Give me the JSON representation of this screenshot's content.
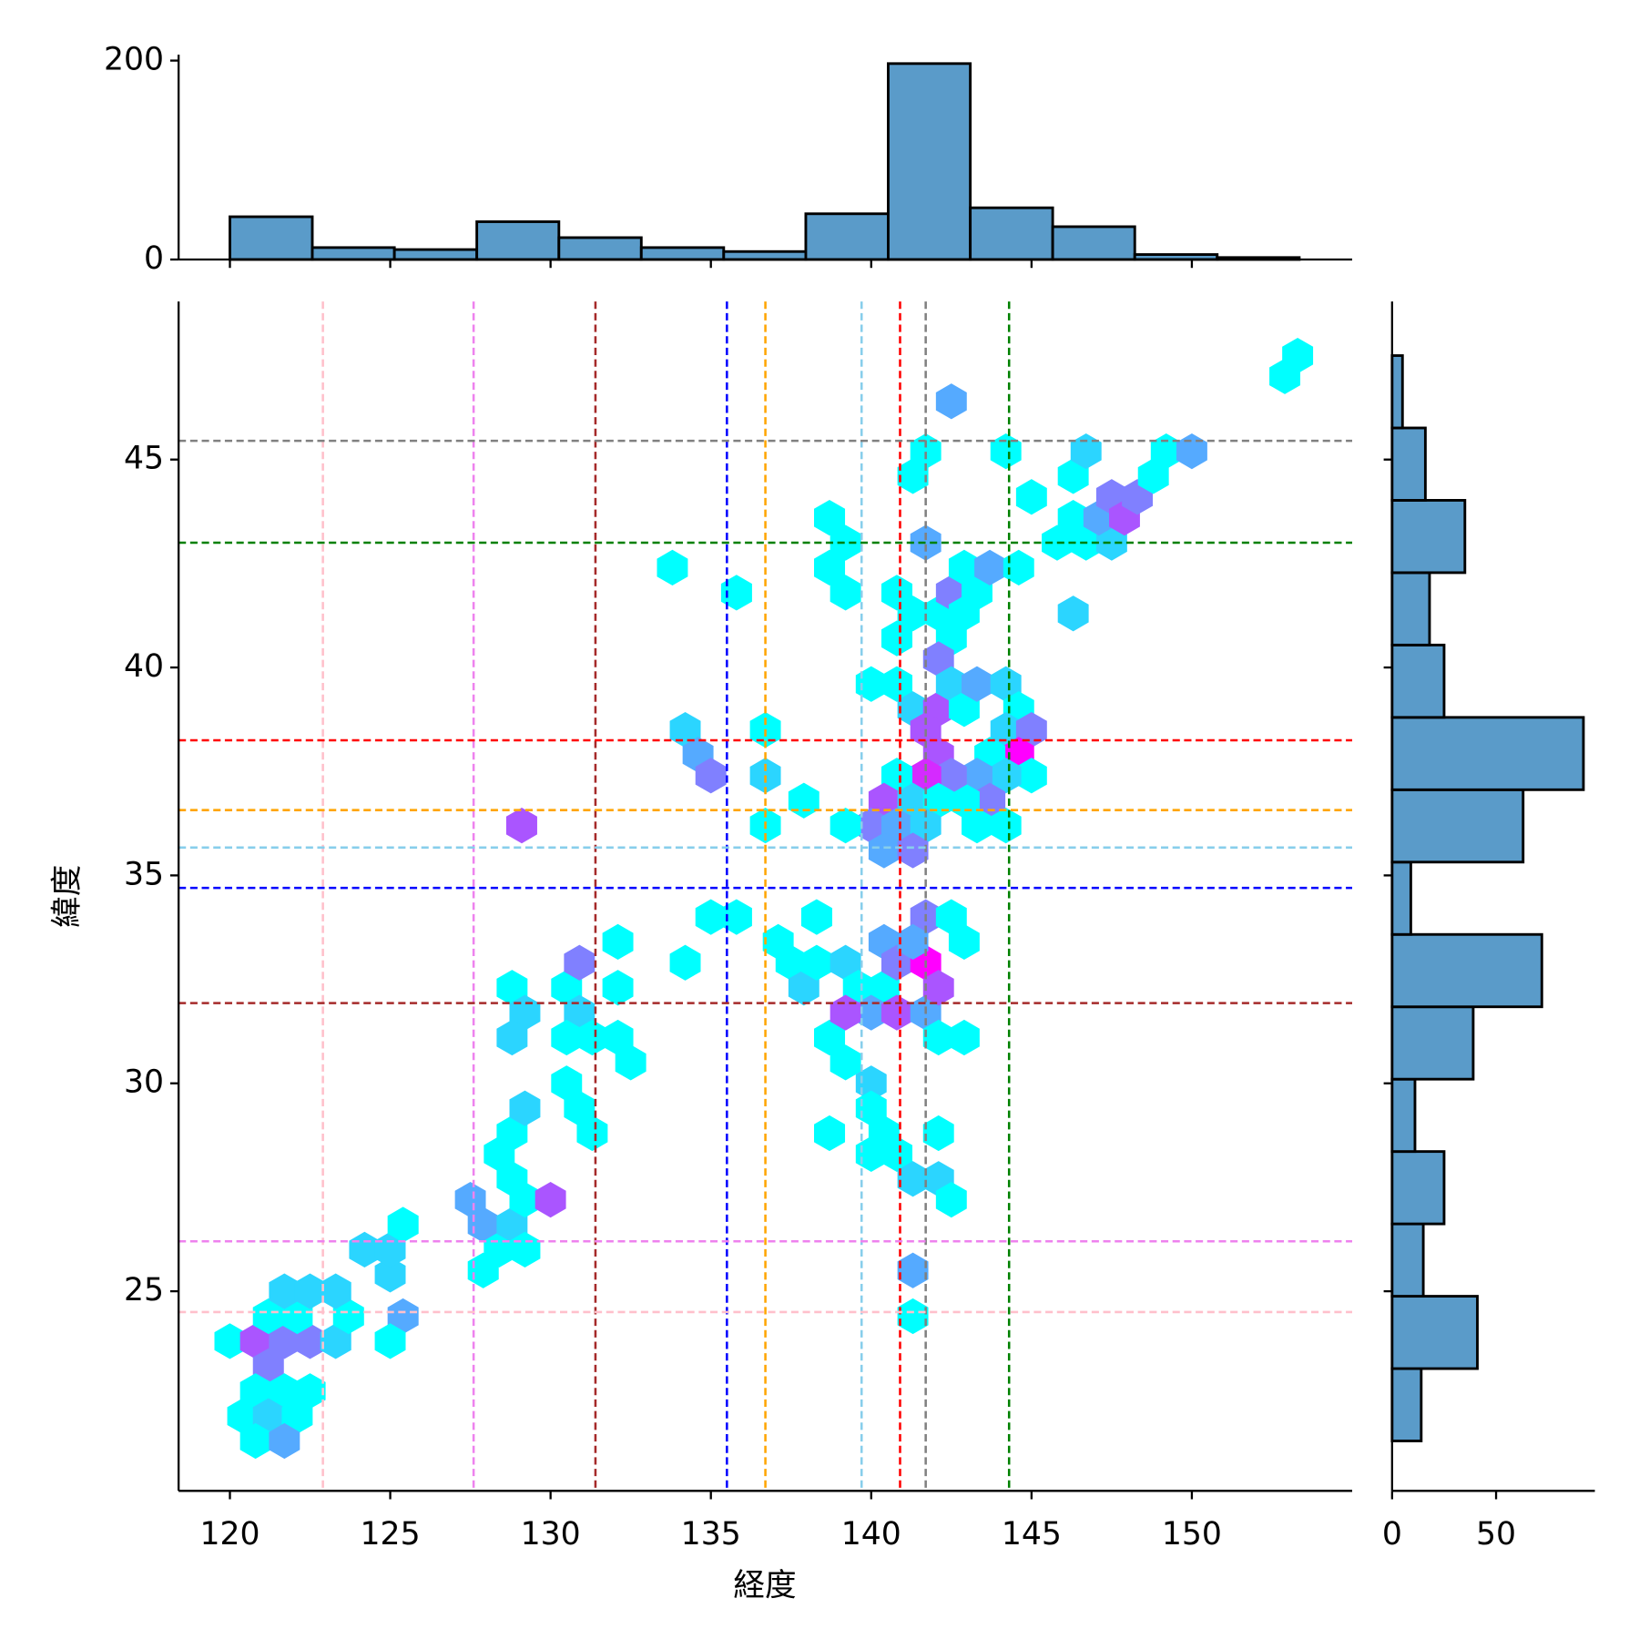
{
  "chart_data": [
    {
      "type": "hexbin",
      "xlabel": "経度",
      "ylabel": "緯度",
      "colormap": "cool",
      "xlim": [
        118.4,
        155.0
      ],
      "ylim": [
        20.2,
        48.8
      ],
      "xticks": [
        120,
        125,
        130,
        135,
        140,
        145,
        150
      ],
      "yticks": [
        25,
        30,
        35,
        40,
        45
      ],
      "x": [
        120.0,
        120.8,
        121.7,
        122.5,
        123.3,
        121.2,
        120.8,
        121.7,
        122.5,
        120.4,
        121.2,
        122.1,
        120.8,
        121.7,
        121.2,
        122.1,
        123.7,
        121.7,
        122.5,
        123.3,
        125.4,
        124.2,
        125.0,
        125.0,
        125.4,
        125.0,
        127.5,
        127.9,
        127.9,
        128.4,
        128.8,
        129.2,
        128.4,
        128.8,
        128.8,
        129.2,
        129.2,
        130.0,
        128.8,
        129.2,
        128.8,
        130.5,
        130.5,
        130.9,
        131.3,
        130.9,
        130.9,
        130.5,
        131.3,
        132.1,
        132.5,
        132.1,
        132.1,
        134.2,
        135.0,
        135.8,
        133.8,
        134.2,
        134.6,
        135.0,
        135.8,
        136.7,
        136.7,
        136.7,
        137.9,
        137.1,
        137.5,
        137.9,
        138.3,
        138.3,
        139.2,
        138.7,
        139.2,
        138.7,
        139.6,
        140.4,
        140.0,
        140.4,
        140.8,
        139.2,
        140.0,
        140.0,
        140.4,
        140.0,
        140.8,
        141.3,
        142.1,
        142.5,
        142.1,
        140.8,
        141.7,
        141.7,
        142.1,
        141.7,
        141.3,
        142.5,
        142.9,
        142.1,
        142.9,
        141.3,
        141.3,
        138.7,
        139.2,
        138.7,
        139.2,
        141.3,
        141.7,
        142.5,
        141.7,
        140.8,
        141.3,
        140.8,
        142.1,
        142.5,
        142.9,
        142.5,
        143.3,
        142.9,
        143.7,
        144.6,
        144.2,
        145.0,
        146.3,
        146.7,
        146.3,
        145.8,
        146.7,
        147.5,
        147.1,
        147.5,
        147.9,
        148.3,
        146.3,
        148.8,
        149.2,
        150.0,
        152.9,
        153.3,
        140.0,
        140.8,
        141.3,
        142.1,
        142.1,
        141.7,
        142.5,
        142.9,
        143.3,
        144.2,
        144.6,
        144.2,
        145.0,
        144.6,
        143.7,
        145.0,
        144.2,
        143.3,
        143.7,
        142.9,
        143.3,
        144.2,
        142.1,
        142.5,
        141.7,
        140.8,
        140.4,
        141.3,
        142.1,
        140.0,
        140.8,
        141.7,
        140.4,
        141.3,
        139.2,
        129.1
      ],
      "y": [
        23.8,
        23.8,
        23.8,
        23.8,
        23.8,
        23.2,
        22.6,
        22.6,
        22.6,
        22.0,
        22.0,
        22.0,
        21.4,
        21.4,
        24.4,
        24.4,
        24.4,
        25.0,
        25.0,
        25.0,
        24.4,
        26.0,
        25.4,
        26.0,
        26.6,
        23.8,
        27.2,
        26.6,
        25.5,
        26.0,
        26.6,
        26.0,
        28.3,
        28.8,
        27.7,
        27.2,
        29.4,
        27.2,
        32.3,
        31.7,
        31.1,
        32.3,
        30.0,
        29.4,
        28.8,
        32.9,
        31.7,
        31.1,
        31.1,
        31.1,
        30.5,
        32.3,
        33.4,
        32.9,
        34.0,
        34.0,
        42.4,
        38.5,
        37.9,
        37.4,
        41.8,
        38.5,
        37.4,
        36.2,
        36.8,
        33.4,
        32.9,
        32.3,
        32.9,
        34.0,
        32.9,
        31.1,
        30.5,
        28.8,
        32.3,
        32.3,
        31.7,
        33.4,
        32.9,
        31.7,
        30.0,
        29.4,
        28.8,
        28.3,
        28.3,
        27.7,
        27.7,
        27.2,
        28.8,
        31.7,
        31.7,
        32.9,
        32.3,
        34.0,
        33.4,
        34.0,
        33.4,
        31.1,
        31.1,
        25.5,
        24.4,
        43.6,
        43.0,
        42.4,
        41.8,
        44.6,
        45.2,
        46.4,
        43.0,
        41.8,
        41.3,
        40.7,
        41.3,
        41.8,
        41.3,
        40.7,
        41.8,
        42.4,
        42.4,
        42.4,
        45.2,
        44.1,
        44.6,
        45.2,
        43.6,
        43.0,
        43.0,
        43.0,
        43.6,
        44.1,
        43.6,
        44.1,
        41.3,
        44.6,
        45.2,
        45.2,
        47.0,
        47.5,
        39.6,
        39.6,
        39.0,
        40.2,
        39.0,
        38.5,
        39.6,
        39.0,
        39.6,
        39.6,
        39.0,
        38.5,
        38.5,
        37.9,
        37.9,
        37.4,
        37.4,
        37.4,
        36.8,
        36.8,
        36.2,
        36.2,
        37.9,
        37.4,
        37.4,
        37.4,
        36.8,
        36.8,
        36.8,
        36.2,
        36.2,
        36.2,
        35.6,
        35.6,
        36.2,
        36.2
      ],
      "counts": [
        1,
        5,
        4,
        4,
        2,
        4,
        1,
        1,
        1,
        1,
        2,
        1,
        1,
        3,
        1,
        1,
        1,
        2,
        2,
        2,
        3,
        2,
        2,
        2,
        1,
        1,
        3,
        3,
        1,
        1,
        2,
        1,
        1,
        1,
        1,
        1,
        2,
        5,
        1,
        2,
        2,
        1,
        1,
        1,
        1,
        4,
        2,
        1,
        1,
        1,
        1,
        1,
        1,
        1,
        1,
        1,
        1,
        2,
        3,
        4,
        1,
        1,
        2,
        1,
        1,
        1,
        1,
        2,
        1,
        1,
        2,
        1,
        1,
        1,
        1,
        1,
        3,
        3,
        4,
        5,
        2,
        1,
        1,
        1,
        1,
        2,
        2,
        1,
        1,
        5,
        3,
        7,
        5,
        4,
        3,
        1,
        1,
        1,
        1,
        3,
        1,
        1,
        1,
        1,
        1,
        1,
        1,
        3,
        3,
        1,
        1,
        1,
        1,
        4,
        1,
        1,
        1,
        1,
        3,
        1,
        1,
        1,
        1,
        2,
        1,
        1,
        1,
        2,
        3,
        4,
        5,
        4,
        2,
        1,
        1,
        3,
        1,
        1,
        1,
        1,
        2,
        4,
        5,
        5,
        2,
        1,
        3,
        2,
        1,
        2,
        4,
        7,
        1,
        1,
        2,
        3,
        4,
        1,
        1,
        1,
        5,
        4,
        6,
        1,
        5,
        2,
        1,
        4,
        3,
        2,
        3,
        4,
        1,
        5
      ],
      "vlines": [
        {
          "x": 122.9,
          "color": "pink"
        },
        {
          "x": 127.6,
          "color": "violet"
        },
        {
          "x": 131.4,
          "color": "brown"
        },
        {
          "x": 135.5,
          "color": "blue"
        },
        {
          "x": 136.7,
          "color": "orange"
        },
        {
          "x": 139.7,
          "color": "skyblue"
        },
        {
          "x": 140.9,
          "color": "red"
        },
        {
          "x": 141.7,
          "color": "gray"
        },
        {
          "x": 144.3,
          "color": "green"
        }
      ],
      "hlines": [
        {
          "y": 45.45,
          "color": "gray"
        },
        {
          "y": 43.0,
          "color": "green"
        },
        {
          "y": 38.25,
          "color": "red"
        },
        {
          "y": 36.57,
          "color": "orange"
        },
        {
          "y": 35.67,
          "color": "skyblue"
        },
        {
          "y": 34.7,
          "color": "blue"
        },
        {
          "y": 31.93,
          "color": "brown"
        },
        {
          "y": 26.2,
          "color": "violet"
        },
        {
          "y": 24.5,
          "color": "pink"
        }
      ]
    },
    {
      "type": "histogram",
      "orientation": "vertical",
      "color": "#5a9bc9",
      "xlim": [
        118.4,
        155.0
      ],
      "ylim": [
        0,
        206
      ],
      "yticks": [
        0,
        200
      ],
      "bins": [
        120.0,
        122.57,
        125.13,
        127.7,
        130.26,
        132.83,
        135.4,
        137.96,
        140.53,
        143.09,
        145.66,
        148.22,
        150.79,
        153.35
      ],
      "values": [
        43,
        12,
        10,
        38,
        22,
        12,
        8,
        46,
        197,
        52,
        33,
        5,
        2
      ]
    },
    {
      "type": "histogram",
      "orientation": "horizontal",
      "color": "#5a9bc9",
      "xlim": [
        0,
        97.5
      ],
      "ylim": [
        20.2,
        48.8
      ],
      "xticks": [
        0,
        50
      ],
      "bins": [
        21.4,
        23.14,
        24.88,
        26.62,
        28.36,
        30.1,
        31.84,
        33.58,
        35.32,
        37.06,
        38.8,
        40.54,
        42.28,
        44.02,
        45.76,
        47.5
      ],
      "values": [
        14,
        41,
        15,
        25,
        11,
        39,
        72,
        9,
        63,
        92,
        25,
        18,
        35,
        16,
        5
      ]
    }
  ]
}
